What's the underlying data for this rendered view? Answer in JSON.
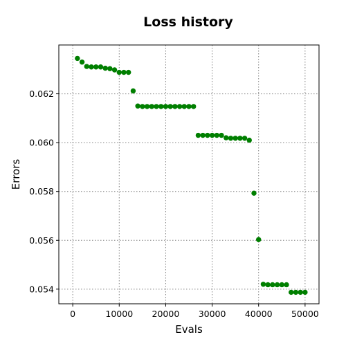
{
  "chart_data": {
    "type": "scatter",
    "title": "Loss history",
    "xlabel": "Evals",
    "ylabel": "Errors",
    "xlim": [
      -3000,
      53000
    ],
    "ylim": [
      0.0534,
      0.064
    ],
    "x_ticks": [
      0,
      10000,
      20000,
      30000,
      40000,
      50000
    ],
    "x_tick_labels": [
      "0",
      "10000",
      "20000",
      "30000",
      "40000",
      "50000"
    ],
    "y_ticks": [
      0.054,
      0.056,
      0.058,
      0.06,
      0.062
    ],
    "y_tick_labels": [
      "0.054",
      "0.056",
      "0.058",
      "0.060",
      "0.062"
    ],
    "grid": true,
    "grid_style": "dotted",
    "marker_color": "#007f00",
    "series": [
      {
        "x": [
          1000,
          2000,
          3000,
          4000,
          5000,
          6000,
          7000,
          8000,
          9000,
          10000,
          11000,
          12000,
          13000,
          14000,
          15000,
          16000,
          17000,
          18000,
          19000,
          20000,
          21000,
          22000,
          23000,
          24000,
          25000,
          26000,
          27000,
          28000,
          29000,
          30000,
          31000,
          32000,
          33000,
          34000,
          35000,
          36000,
          37000,
          38000,
          39000,
          40000,
          41000,
          42000,
          43000,
          44000,
          45000,
          46000,
          47000,
          48000,
          49000,
          50000
        ],
        "y": [
          0.06345,
          0.0633,
          0.06312,
          0.0631,
          0.0631,
          0.0631,
          0.06305,
          0.06303,
          0.06298,
          0.06288,
          0.06288,
          0.06288,
          0.06212,
          0.0615,
          0.06148,
          0.06148,
          0.06148,
          0.06148,
          0.06148,
          0.06148,
          0.06148,
          0.06148,
          0.06148,
          0.06148,
          0.06148,
          0.06148,
          0.0603,
          0.0603,
          0.0603,
          0.0603,
          0.0603,
          0.0603,
          0.0602,
          0.06018,
          0.06018,
          0.06018,
          0.06018,
          0.0601,
          0.05793,
          0.05603,
          0.0542,
          0.05418,
          0.05418,
          0.05418,
          0.05418,
          0.05418,
          0.05387,
          0.05387,
          0.05387,
          0.05387
        ]
      }
    ]
  }
}
